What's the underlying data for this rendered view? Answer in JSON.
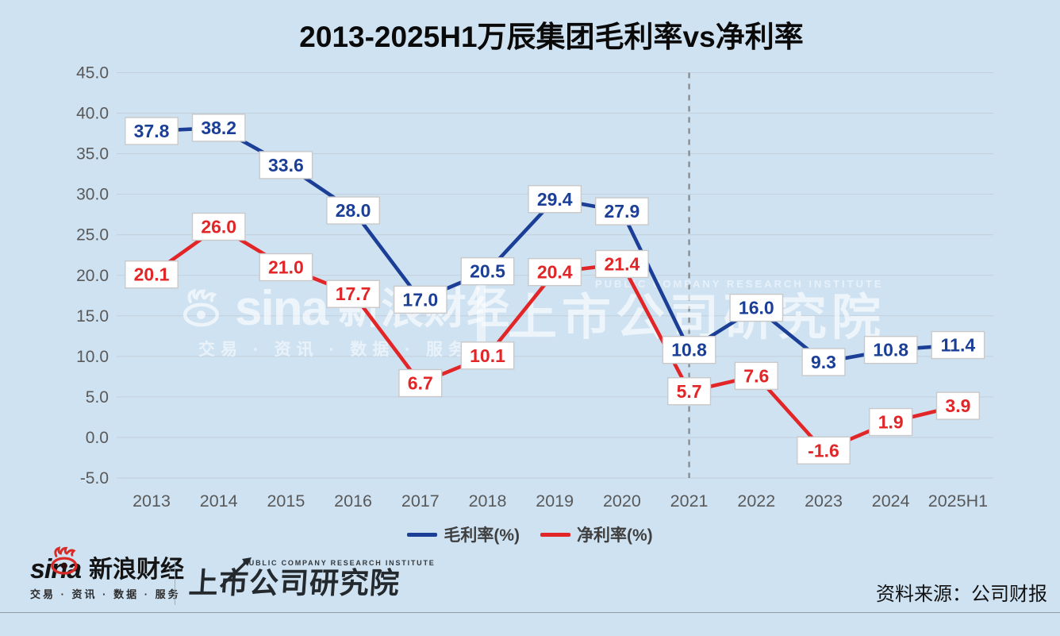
{
  "title": "2013-2025H1万辰集团毛利率vs净利率",
  "chart_data": {
    "type": "line",
    "categories": [
      "2013",
      "2014",
      "2015",
      "2016",
      "2017",
      "2018",
      "2019",
      "2020",
      "2021",
      "2022",
      "2023",
      "2024",
      "2025H1"
    ],
    "series": [
      {
        "name": "毛利率(%)",
        "color": "#1b3f97",
        "values": [
          37.8,
          38.2,
          33.6,
          28.0,
          17.0,
          20.5,
          29.4,
          27.9,
          10.8,
          16.0,
          9.3,
          10.8,
          11.4
        ]
      },
      {
        "name": "净利率(%)",
        "color": "#e22527",
        "values": [
          20.1,
          26.0,
          21.0,
          17.7,
          6.7,
          10.1,
          20.4,
          21.4,
          5.7,
          7.6,
          -1.6,
          1.9,
          3.9
        ]
      }
    ],
    "ylim": [
      -5.0,
      45.0
    ],
    "ytick_step": 5.0,
    "ytick_format_decimals": 1,
    "grid": true,
    "legend_position": "bottom",
    "vline_at_category": "2021",
    "label_boxes": true
  },
  "colors": {
    "background": "#cfe2f2",
    "gridline": "#c3cfda",
    "axis_text": "#595959",
    "dashed_line": "#878787",
    "label_box_border": "#c9c9c9",
    "label_box_fill": "#ffffff",
    "sina_red": "#d92a25"
  },
  "watermark": {
    "brand": "sina",
    "brand_cn": "新浪财经",
    "tagline": "交易 · 资讯 · 数据 · 服务",
    "institute_en": "PUBLIC COMPANY RESEARCH INSTITUTE",
    "institute_cn": "上市公司研究院"
  },
  "footer": {
    "brand": "sina",
    "brand_cn": "新浪财经",
    "tagline": "交易 · 资讯 · 数据 · 服务",
    "institute_en": "PUBLIC COMPANY RESEARCH INSTITUTE",
    "institute_cn": "上市公司研究院",
    "source_label": "资料来源：公司财报"
  }
}
